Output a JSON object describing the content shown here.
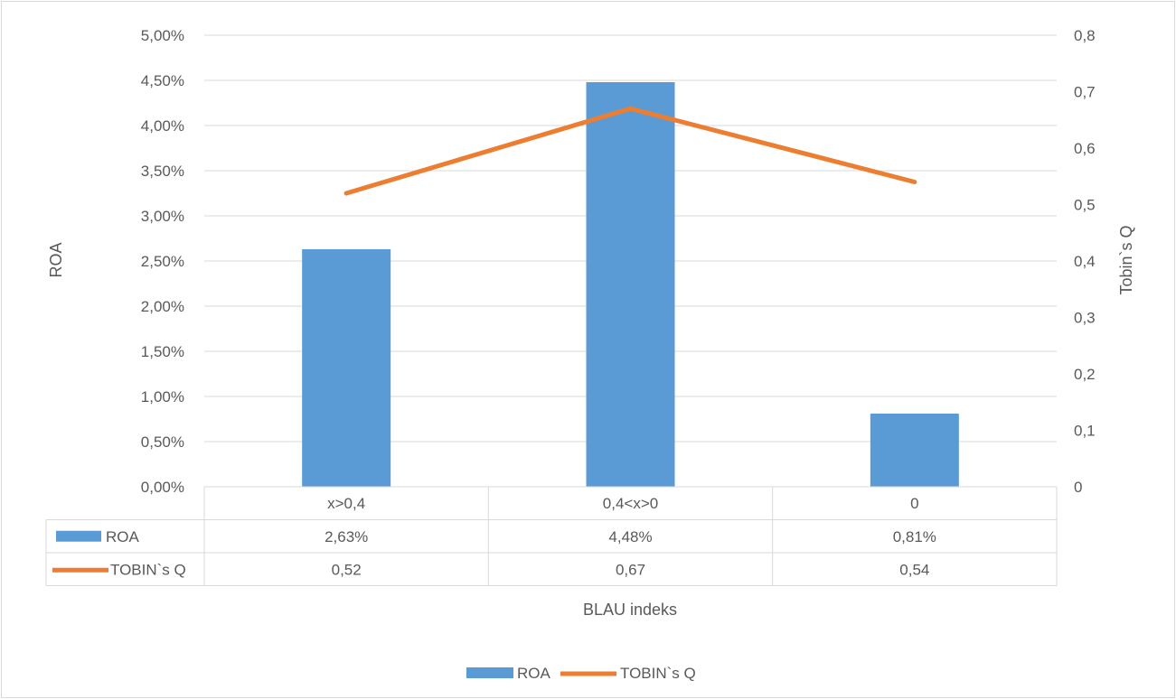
{
  "chart_data": {
    "type": "bar",
    "categories": [
      "x>0,4",
      "0,4<x>0",
      "0"
    ],
    "series": [
      {
        "name": "ROA",
        "type": "bar",
        "axis": "left",
        "values": [
          2.63,
          4.48,
          0.81
        ],
        "labels": [
          "2,63%",
          "4,48%",
          "0,81%"
        ],
        "color": "#5B9BD5"
      },
      {
        "name": "TOBIN`s Q",
        "type": "line",
        "axis": "right",
        "values": [
          0.52,
          0.67,
          0.54
        ],
        "labels": [
          "0,52",
          "0,67",
          "0,54"
        ],
        "color": "#ED7D31"
      }
    ],
    "xlabel": "BLAU indeks",
    "ylabel": "ROA",
    "y2label": "Tobin`s Q",
    "ylim": [
      0,
      5
    ],
    "y2lim": [
      0,
      0.8
    ],
    "y_ticks": [
      "0,00%",
      "0,50%",
      "1,00%",
      "1,50%",
      "2,00%",
      "2,50%",
      "3,00%",
      "3,50%",
      "4,00%",
      "4,50%",
      "5,00%"
    ],
    "y2_ticks": [
      "0",
      "0,1",
      "0,2",
      "0,3",
      "0,4",
      "0,5",
      "0,6",
      "0,7",
      "0,8"
    ],
    "grid": true,
    "legend": {
      "position": "bottom",
      "entries": [
        "ROA",
        "TOBIN`s Q"
      ]
    },
    "data_table": true
  }
}
